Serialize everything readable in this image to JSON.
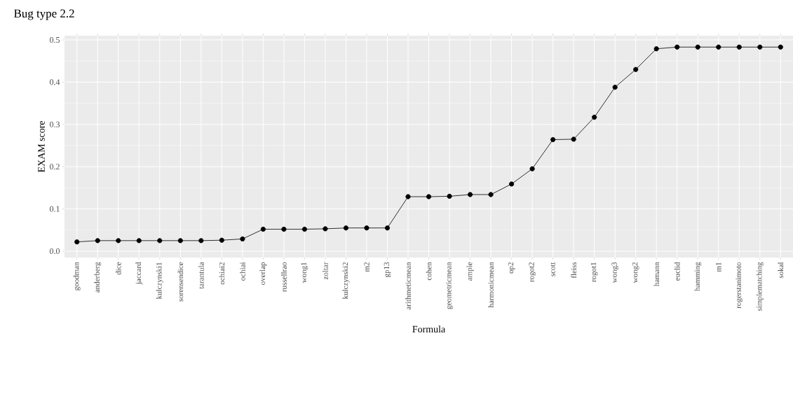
{
  "chart_data": {
    "type": "line",
    "title": "Bug type 2.2",
    "xlabel": "Formula",
    "ylabel": "EXAM score",
    "categories": [
      "goodman",
      "anderberg",
      "dice",
      "jaccard",
      "kulczynski1",
      "sorensendice",
      "tarantula",
      "ochiai2",
      "ochiai",
      "overlap",
      "russellrao",
      "wong1",
      "zoltar",
      "kulczynski2",
      "m2",
      "gp13",
      "arithmeticmean",
      "cohen",
      "geometricmean",
      "ample",
      "harmonicmean",
      "op2",
      "rogot2",
      "scott",
      "fleiss",
      "rogot1",
      "wong3",
      "wong2",
      "hamann",
      "euclid",
      "hamming",
      "m1",
      "rogerstanimoto",
      "simplematching",
      "sokal"
    ],
    "series": [
      {
        "color": "#000000",
        "values": [
          0.022,
          0.025,
          0.025,
          0.025,
          0.025,
          0.025,
          0.025,
          0.026,
          0.029,
          0.052,
          0.052,
          0.052,
          0.053,
          0.055,
          0.055,
          0.055,
          0.129,
          0.129,
          0.13,
          0.134,
          0.134,
          0.159,
          0.195,
          0.264,
          0.265,
          0.317,
          0.388,
          0.43,
          0.479,
          0.483,
          0.483,
          0.483,
          0.483,
          0.483,
          0.483
        ]
      }
    ],
    "ylim": [
      -0.015,
      0.51
    ],
    "yticks": [
      {
        "value": 0,
        "label": "0.0"
      },
      0.1,
      0.2,
      0.3,
      0.4,
      0.5
    ],
    "grid": true,
    "marker": "circle",
    "line_style": "solid"
  }
}
